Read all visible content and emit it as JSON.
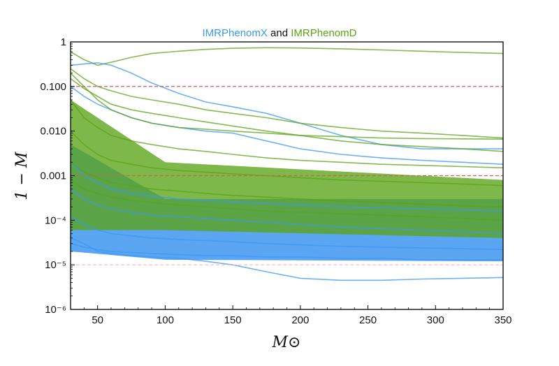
{
  "chart_data": {
    "type": "line",
    "title": {
      "part1": "IMRPhenomX",
      "part2": " and ",
      "part3": "IMRPhenomD"
    },
    "xlabel": "M⊙",
    "ylabel": "1 − M",
    "x_ticks": [
      "50",
      "100",
      "150",
      "200",
      "250",
      "300",
      "350"
    ],
    "y_ticks": [
      "10⁻⁶",
      "10⁻⁵",
      "10⁻⁴",
      "0.001",
      "0.010",
      "0.100",
      "1"
    ],
    "xlim": [
      30,
      350
    ],
    "ylim": [
      1e-06,
      1
    ],
    "y_scale": "log",
    "grid": false,
    "colors": {
      "IMRPhenomX": "#3d97f0",
      "IMRPhenomD": "#5aa417",
      "ref_line_0.1": "#d6455c",
      "ref_line_0.001": "#cc6644",
      "ref_line_1e-5": "#f3b9c0"
    },
    "reference_lines": [
      0.1,
      0.001,
      1e-05
    ],
    "x_samples": [
      30,
      40,
      50,
      60,
      75,
      90,
      110,
      130,
      150,
      175,
      200,
      230,
      260,
      290,
      320,
      350
    ],
    "series": [
      {
        "name": "IMRPhenomD",
        "values": [
          0.6,
          0.4,
          0.3,
          0.35,
          0.45,
          0.55,
          0.62,
          0.68,
          0.72,
          0.74,
          0.73,
          0.7,
          0.66,
          0.62,
          0.58,
          0.55
        ]
      },
      {
        "name": "IMRPhenomX",
        "values": [
          0.3,
          0.32,
          0.34,
          0.3,
          0.2,
          0.12,
          0.07,
          0.045,
          0.035,
          0.025,
          0.015,
          0.008,
          0.005,
          0.004,
          0.004,
          0.004
        ]
      },
      {
        "name": "IMRPhenomD",
        "values": [
          0.25,
          0.15,
          0.1,
          0.08,
          0.06,
          0.05,
          0.04,
          0.03,
          0.025,
          0.02,
          0.015,
          0.012,
          0.01,
          0.009,
          0.008,
          0.007
        ]
      },
      {
        "name": "IMRPhenomX",
        "values": [
          4e-05,
          3e-05,
          2e-05,
          1.8e-05,
          1.6e-05,
          1.5e-05,
          1.4e-05,
          1.2e-05,
          1e-05,
          7e-06,
          5e-06,
          4.5e-06,
          4.5e-06,
          4.8e-06,
          5e-06,
          5.2e-06
        ]
      },
      {
        "name": "IMRPhenomX",
        "values": [
          0.1,
          0.06,
          0.04,
          0.03,
          0.02,
          0.015,
          0.012,
          0.01,
          0.009,
          0.006,
          0.004,
          0.003,
          0.0025,
          0.0022,
          0.002,
          0.0018
        ]
      },
      {
        "name": "IMRPhenomD",
        "values": [
          0.15,
          0.09,
          0.06,
          0.04,
          0.03,
          0.025,
          0.02,
          0.016,
          0.013,
          0.01,
          0.008,
          0.006,
          0.005,
          0.0045,
          0.004,
          0.0035
        ]
      },
      {
        "name": "IMRPhenomX",
        "values": [
          0.0005,
          0.0003,
          0.00022,
          0.00018,
          0.00015,
          0.00013,
          0.00012,
          0.00011,
          0.0001,
          9e-05,
          8e-05,
          7e-05,
          6.5e-05,
          6e-05,
          5.5e-05,
          5e-05
        ]
      },
      {
        "name": "IMRPhenomX",
        "values": [
          0.00012,
          8e-05,
          6e-05,
          5e-05,
          4.5e-05,
          4e-05,
          3.7e-05,
          3.5e-05,
          3.3e-05,
          3e-05,
          2.8e-05,
          2.6e-05,
          2.5e-05,
          2.4e-05,
          2.3e-05,
          2.2e-05
        ]
      },
      {
        "name": "IMRPhenomX",
        "values": [
          3e-05,
          2.5e-05,
          2.2e-05,
          2e-05,
          1.9e-05,
          1.8e-05,
          1.7e-05,
          1.6e-05,
          1.6e-05,
          1.5e-05,
          1.5e-05,
          1.4e-05,
          1.4e-05,
          1.3e-05,
          1.3e-05,
          1.3e-05
        ]
      },
      {
        "name": "IMRPhenomX",
        "values": [
          0.002,
          0.001,
          0.0007,
          0.0005,
          0.0004,
          0.00035,
          0.0003,
          0.00028,
          0.00026,
          0.00024,
          0.00022,
          0.0002,
          0.00019,
          0.00018,
          0.00017,
          0.00016
        ]
      },
      {
        "name": "IMRPhenomD",
        "values": [
          0.05,
          0.02,
          0.012,
          0.008,
          0.006,
          0.005,
          0.004,
          0.0035,
          0.003,
          0.0025,
          0.0022,
          0.002,
          0.0018,
          0.0017,
          0.0016,
          0.0015
        ]
      },
      {
        "name": "IMRPhenomD",
        "values": [
          0.01,
          0.005,
          0.003,
          0.0022,
          0.0018,
          0.0015,
          0.0013,
          0.0012,
          0.0011,
          0.001,
          0.0009,
          0.0008,
          0.00075,
          0.0007,
          0.00065,
          0.0006
        ]
      },
      {
        "name": "IMRPhenomD",
        "values": [
          0.002,
          0.0012,
          0.0009,
          0.0007,
          0.0006,
          0.0005,
          0.00045,
          0.0004,
          0.00036,
          0.00033,
          0.0003,
          0.00027,
          0.00025,
          0.00023,
          0.00021,
          0.0002
        ]
      },
      {
        "name": "IMRPhenomD",
        "values": [
          0.0008,
          0.0005,
          0.0004,
          0.00033,
          0.00028,
          0.00025,
          0.00022,
          0.0002,
          0.00018,
          0.00016,
          0.00015,
          0.00014,
          0.00013,
          0.00012,
          0.00011,
          0.0001
        ]
      },
      {
        "name": "IMRPhenomD",
        "values": [
          0.2,
          0.1,
          0.05,
          0.03,
          0.02,
          0.015,
          0.012,
          0.011,
          0.01,
          0.009,
          0.008,
          0.0075,
          0.007,
          0.0068,
          0.0067,
          0.0066
        ]
      }
    ]
  }
}
